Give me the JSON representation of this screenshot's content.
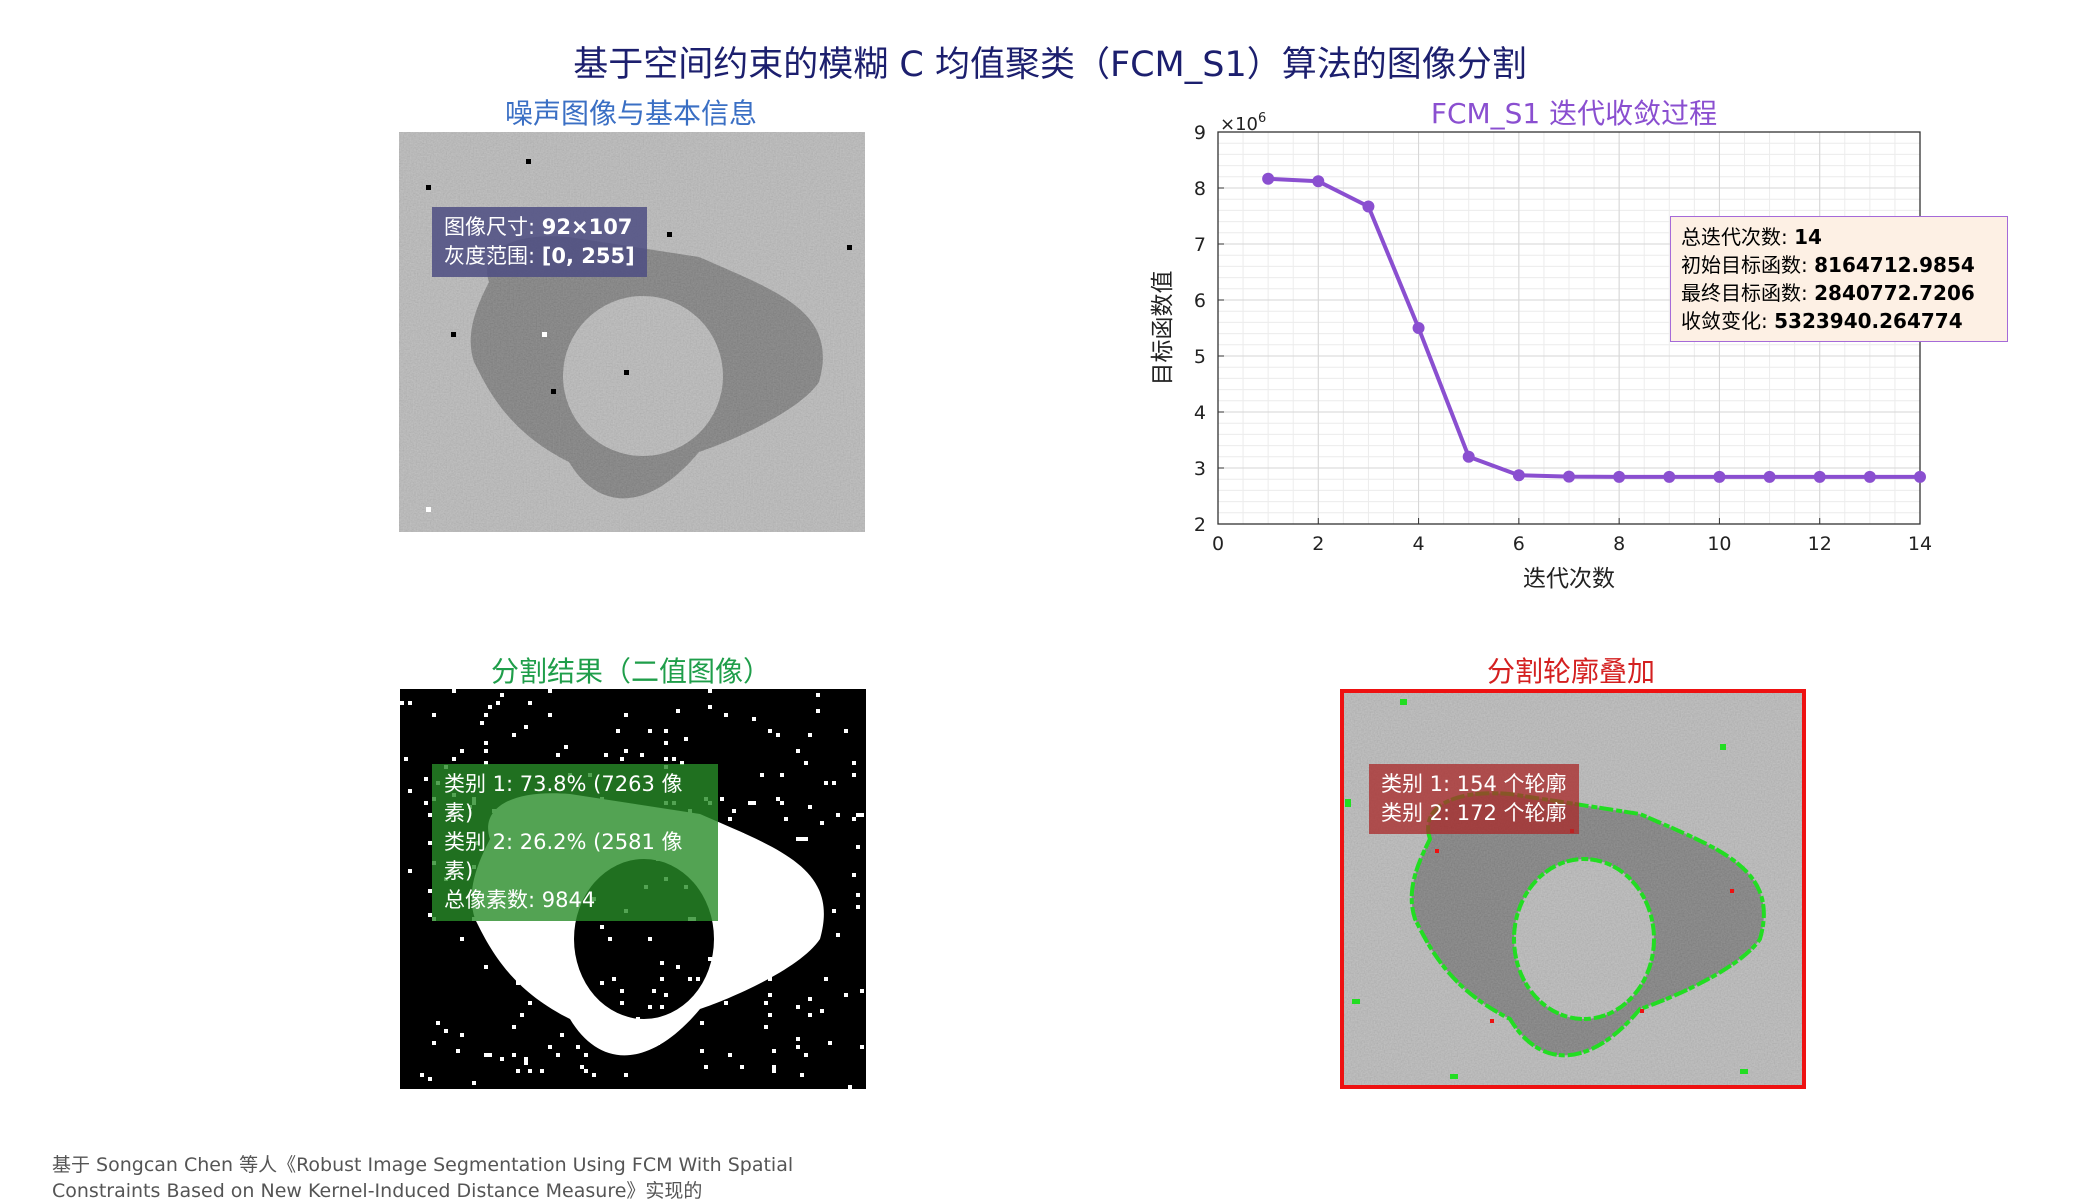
{
  "main_title": "基于空间约束的模糊 C 均值聚类（FCM_S1）算法的图像分割",
  "panels": {
    "noisy": {
      "title": "噪声图像与基本信息",
      "size_label": "图像尺寸: ",
      "size_value": "92×107",
      "range_label": "灰度范围: ",
      "range_value": "[0, 255]"
    },
    "convergence": {
      "title": "FCM_S1 迭代收敛过程",
      "info": [
        {
          "label": "总迭代次数: ",
          "value": "14"
        },
        {
          "label": "初始目标函数: ",
          "value": "8164712.9854"
        },
        {
          "label": "最终目标函数: ",
          "value": "2840772.7206"
        },
        {
          "label": "收敛变化: ",
          "value": "5323940.264774"
        }
      ]
    },
    "binary": {
      "title": "分割结果（二值图像）",
      "lines": [
        "类别 1: 73.8% (7263 像素)",
        "类别 2: 26.2% (2581 像素)",
        "总像素数: 9844"
      ]
    },
    "overlay": {
      "title": "分割轮廓叠加",
      "lines": [
        "类别 1: 154 个轮廓",
        "类别 2: 172 个轮廓"
      ]
    }
  },
  "colors": {
    "title": "#1c1f6e",
    "noisy_title": "#3a6fc4",
    "conv_title": "#8a4fd0",
    "line": "#8a4fd0",
    "binary_title": "#1f9e4a",
    "overlay_title": "#d42020",
    "contour_green": "#22dd22",
    "contour_red": "#ee1111"
  },
  "chart_data": {
    "type": "line",
    "xlabel": "迭代次数",
    "ylabel": "目标函数值",
    "y_multiplier": "×10^6",
    "xlim": [
      0,
      14
    ],
    "ylim": [
      2,
      9
    ],
    "xticks": [
      0,
      2,
      4,
      6,
      8,
      10,
      12,
      14
    ],
    "yticks": [
      2,
      3,
      4,
      5,
      6,
      7,
      8,
      9
    ],
    "grid": true,
    "series": [
      {
        "x": [
          1,
          2,
          3,
          4,
          5,
          6,
          7,
          8,
          9,
          10,
          11,
          12,
          13,
          14
        ],
        "values": [
          8.1647,
          8.12,
          7.67,
          5.5,
          3.2,
          2.87,
          2.845,
          2.842,
          2.841,
          2.8408,
          2.8408,
          2.8408,
          2.8408,
          2.8408
        ]
      }
    ]
  },
  "footer": {
    "line1": "基于 Songcan Chen 等人《Robust Image Segmentation Using FCM With Spatial",
    "line2": "Constraints Based on New Kernel-Induced Distance Measure》实现的"
  }
}
